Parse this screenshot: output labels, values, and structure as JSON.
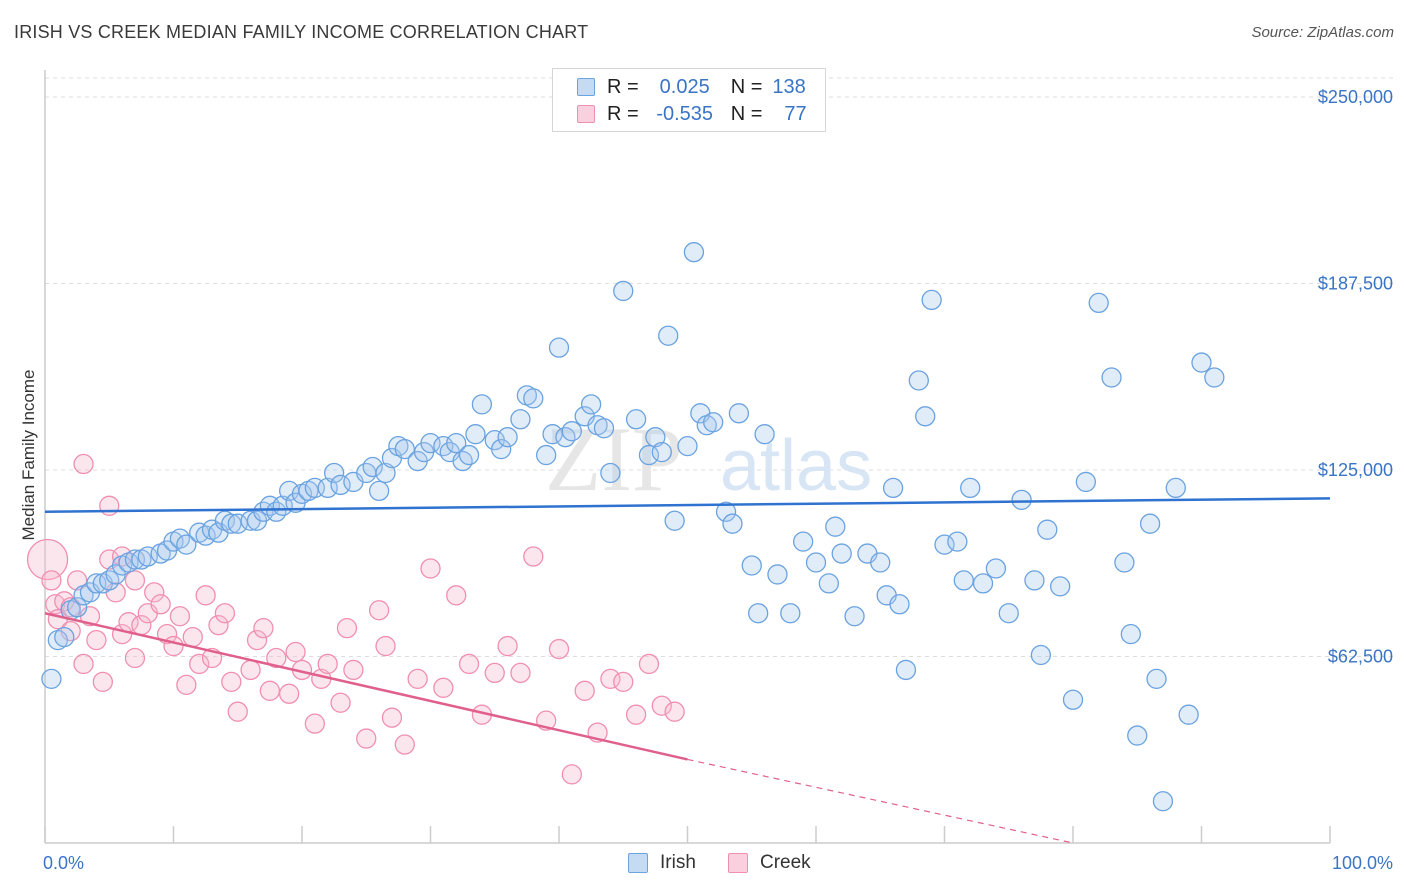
{
  "header": {
    "title": "IRISH VS CREEK MEDIAN FAMILY INCOME CORRELATION CHART",
    "source": "Source: ZipAtlas.com"
  },
  "legend": {
    "irish": {
      "r_label": "R =",
      "r_value": "0.025",
      "n_label": "N =",
      "n_value": "138"
    },
    "creek": {
      "r_label": "R =",
      "r_value": "-0.535",
      "n_label": "N =",
      "n_value": "77"
    }
  },
  "bottom_legend": {
    "irish": "Irish",
    "creek": "Creek"
  },
  "watermark": {
    "zip": "ZIP",
    "atlas": "atlas"
  },
  "colors": {
    "irish": "#6aa3e0",
    "irish_line": "#2f72cf",
    "creek": "#f08fb0",
    "creek_line": "#e0608c",
    "axis_text": "#3a74c4"
  },
  "chart_data": {
    "type": "scatter",
    "title": "IRISH VS CREEK MEDIAN FAMILY INCOME CORRELATION CHART",
    "xlabel": "",
    "ylabel": "Median Family Income",
    "x_tick_labels": [
      "0.0%",
      "100.0%"
    ],
    "y_tick_labels": [
      "$62,500",
      "$125,000",
      "$187,500",
      "$250,000"
    ],
    "y_ticks": [
      62500,
      125000,
      187500,
      250000
    ],
    "xlim": [
      0,
      100
    ],
    "ylim": [
      0,
      250000
    ],
    "grid": true,
    "legend_position": "top-center",
    "series": [
      {
        "name": "Irish",
        "color": "#6aa3e0",
        "trend": {
          "x": [
            0,
            100
          ],
          "y": [
            111000,
            115500
          ]
        },
        "points": [
          [
            0.5,
            55000
          ],
          [
            1,
            68000
          ],
          [
            1.5,
            69000
          ],
          [
            2,
            78000
          ],
          [
            2.5,
            79000
          ],
          [
            3,
            83000
          ],
          [
            3.5,
            84000
          ],
          [
            4,
            87000
          ],
          [
            4.5,
            87000
          ],
          [
            5,
            88000
          ],
          [
            5.5,
            90000
          ],
          [
            6,
            93000
          ],
          [
            6.5,
            94000
          ],
          [
            7,
            95000
          ],
          [
            7.5,
            95000
          ],
          [
            8,
            96000
          ],
          [
            9,
            97000
          ],
          [
            9.5,
            98000
          ],
          [
            10,
            101000
          ],
          [
            10.5,
            102000
          ],
          [
            11,
            100000
          ],
          [
            12,
            104000
          ],
          [
            12.5,
            103000
          ],
          [
            13,
            105000
          ],
          [
            13.5,
            104000
          ],
          [
            14,
            108000
          ],
          [
            14.5,
            107000
          ],
          [
            15,
            107000
          ],
          [
            16,
            108000
          ],
          [
            16.5,
            108000
          ],
          [
            17,
            111000
          ],
          [
            17.5,
            113000
          ],
          [
            18,
            111000
          ],
          [
            18.5,
            113000
          ],
          [
            19,
            118000
          ],
          [
            19.5,
            114000
          ],
          [
            20,
            117000
          ],
          [
            20.5,
            118000
          ],
          [
            21,
            119000
          ],
          [
            22,
            119000
          ],
          [
            22.5,
            124000
          ],
          [
            23,
            120000
          ],
          [
            24,
            121000
          ],
          [
            25,
            124000
          ],
          [
            25.5,
            126000
          ],
          [
            26,
            118000
          ],
          [
            26.5,
            124000
          ],
          [
            27,
            129000
          ],
          [
            27.5,
            133000
          ],
          [
            28,
            132000
          ],
          [
            29,
            128000
          ],
          [
            29.5,
            131000
          ],
          [
            30,
            134000
          ],
          [
            31,
            133000
          ],
          [
            31.5,
            131000
          ],
          [
            32,
            134000
          ],
          [
            32.5,
            128000
          ],
          [
            33,
            130000
          ],
          [
            33.5,
            137000
          ],
          [
            34,
            147000
          ],
          [
            35,
            135000
          ],
          [
            35.5,
            132000
          ],
          [
            36,
            136000
          ],
          [
            37,
            142000
          ],
          [
            37.5,
            150000
          ],
          [
            38,
            149000
          ],
          [
            39,
            130000
          ],
          [
            39.5,
            137000
          ],
          [
            40,
            166000
          ],
          [
            40.5,
            136000
          ],
          [
            41,
            138000
          ],
          [
            42,
            143000
          ],
          [
            42.5,
            147000
          ],
          [
            43,
            140000
          ],
          [
            43.5,
            139000
          ],
          [
            44,
            124000
          ],
          [
            45,
            185000
          ],
          [
            46,
            142000
          ],
          [
            47,
            130000
          ],
          [
            47.5,
            136000
          ],
          [
            48,
            131000
          ],
          [
            48.5,
            170000
          ],
          [
            49,
            108000
          ],
          [
            50,
            133000
          ],
          [
            50.5,
            198000
          ],
          [
            51,
            144000
          ],
          [
            51.5,
            140000
          ],
          [
            52,
            141000
          ],
          [
            53,
            111000
          ],
          [
            53.5,
            107000
          ],
          [
            54,
            144000
          ],
          [
            55,
            93000
          ],
          [
            55.5,
            77000
          ],
          [
            56,
            137000
          ],
          [
            57,
            90000
          ],
          [
            58,
            77000
          ],
          [
            59,
            101000
          ],
          [
            60,
            94000
          ],
          [
            61,
            87000
          ],
          [
            61.5,
            106000
          ],
          [
            62,
            97000
          ],
          [
            63,
            76000
          ],
          [
            64,
            97000
          ],
          [
            65,
            94000
          ],
          [
            65.5,
            83000
          ],
          [
            66,
            119000
          ],
          [
            66.5,
            80000
          ],
          [
            67,
            58000
          ],
          [
            68,
            155000
          ],
          [
            68.5,
            143000
          ],
          [
            69,
            182000
          ],
          [
            70,
            100000
          ],
          [
            71,
            101000
          ],
          [
            71.5,
            88000
          ],
          [
            72,
            119000
          ],
          [
            73,
            87000
          ],
          [
            74,
            92000
          ],
          [
            75,
            77000
          ],
          [
            76,
            115000
          ],
          [
            77,
            88000
          ],
          [
            77.5,
            63000
          ],
          [
            78,
            105000
          ],
          [
            79,
            86000
          ],
          [
            80,
            48000
          ],
          [
            81,
            121000
          ],
          [
            82,
            181000
          ],
          [
            83,
            156000
          ],
          [
            84,
            94000
          ],
          [
            84.5,
            70000
          ],
          [
            85,
            36000
          ],
          [
            86,
            107000
          ],
          [
            86.5,
            55000
          ],
          [
            87,
            14000
          ],
          [
            88,
            119000
          ],
          [
            89,
            43000
          ],
          [
            90,
            161000
          ],
          [
            91,
            156000
          ]
        ]
      },
      {
        "name": "Creek",
        "color": "#f08fb0",
        "trend": {
          "x": [
            0,
            50,
            80
          ],
          "y": [
            77000,
            28000,
            0
          ]
        },
        "points": [
          [
            0.2,
            95000
          ],
          [
            0.5,
            88000
          ],
          [
            0.8,
            80000
          ],
          [
            1,
            75000
          ],
          [
            1.5,
            81000
          ],
          [
            2,
            79000
          ],
          [
            2,
            71000
          ],
          [
            2.5,
            88000
          ],
          [
            3,
            60000
          ],
          [
            3.5,
            76000
          ],
          [
            4,
            68000
          ],
          [
            4.5,
            54000
          ],
          [
            5,
            95000
          ],
          [
            5.5,
            84000
          ],
          [
            6,
            70000
          ],
          [
            6.5,
            74000
          ],
          [
            7,
            62000
          ],
          [
            7.5,
            73000
          ],
          [
            8,
            77000
          ],
          [
            8.5,
            84000
          ],
          [
            9,
            80000
          ],
          [
            9.5,
            70000
          ],
          [
            10,
            66000
          ],
          [
            10.5,
            76000
          ],
          [
            11,
            53000
          ],
          [
            11.5,
            69000
          ],
          [
            12,
            60000
          ],
          [
            12.5,
            83000
          ],
          [
            13,
            62000
          ],
          [
            13.5,
            73000
          ],
          [
            14,
            77000
          ],
          [
            14.5,
            54000
          ],
          [
            15,
            44000
          ],
          [
            16,
            58000
          ],
          [
            16.5,
            68000
          ],
          [
            17,
            72000
          ],
          [
            17.5,
            51000
          ],
          [
            18,
            62000
          ],
          [
            19,
            50000
          ],
          [
            19.5,
            64000
          ],
          [
            20,
            58000
          ],
          [
            21,
            40000
          ],
          [
            21.5,
            55000
          ],
          [
            22,
            60000
          ],
          [
            23,
            47000
          ],
          [
            23.5,
            72000
          ],
          [
            24,
            58000
          ],
          [
            25,
            35000
          ],
          [
            26,
            78000
          ],
          [
            26.5,
            66000
          ],
          [
            27,
            42000
          ],
          [
            28,
            33000
          ],
          [
            29,
            55000
          ],
          [
            30,
            92000
          ],
          [
            31,
            52000
          ],
          [
            32,
            83000
          ],
          [
            33,
            60000
          ],
          [
            34,
            43000
          ],
          [
            35,
            57000
          ],
          [
            36,
            66000
          ],
          [
            37,
            57000
          ],
          [
            38,
            96000
          ],
          [
            39,
            41000
          ],
          [
            40,
            65000
          ],
          [
            41,
            23000
          ],
          [
            42,
            51000
          ],
          [
            43,
            37000
          ],
          [
            44,
            55000
          ],
          [
            45,
            54000
          ],
          [
            46,
            43000
          ],
          [
            47,
            60000
          ],
          [
            48,
            46000
          ],
          [
            49,
            44000
          ],
          [
            3,
            127000
          ],
          [
            5,
            113000
          ],
          [
            6,
            96000
          ],
          [
            7,
            88000
          ]
        ]
      }
    ]
  }
}
